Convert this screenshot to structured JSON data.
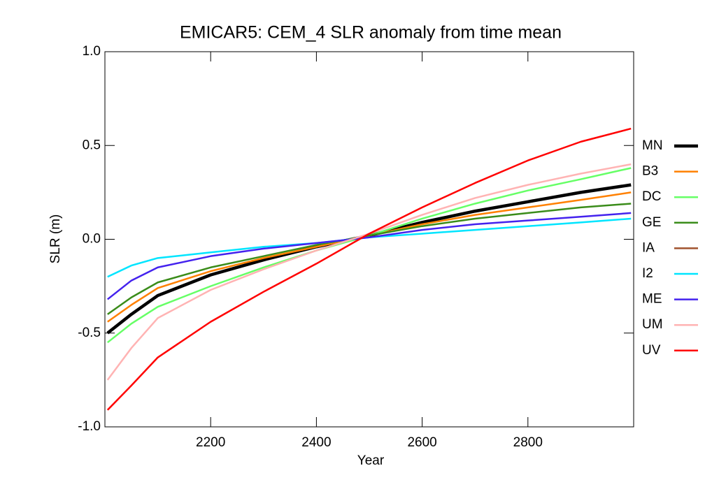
{
  "chart_data": {
    "type": "line",
    "title": "EMICAR5: CEM_4 SLR anomaly from time mean",
    "x_label": "Year",
    "y_label": "SLR (m)",
    "xlim": [
      2000,
      3000
    ],
    "ylim": [
      -1.0,
      1.0
    ],
    "xticks": [
      2200,
      2400,
      2600,
      2800
    ],
    "yticks": [
      {
        "value": -1.0,
        "label": "-1.0"
      },
      {
        "value": -0.5,
        "label": "-0.5"
      },
      {
        "value": 0,
        "label": "0.0"
      },
      {
        "value": 0.5,
        "label": "0.5"
      },
      {
        "value": 1.0,
        "label": "1.0"
      }
    ],
    "x": [
      2005,
      2050,
      2100,
      2200,
      2300,
      2400,
      2500,
      2600,
      2700,
      2800,
      2900,
      2995
    ],
    "series": [
      {
        "name": "MN",
        "color": "#000000",
        "line_width": 4.5,
        "values": [
          -0.5,
          -0.4,
          -0.3,
          -0.19,
          -0.11,
          -0.04,
          0.02,
          0.09,
          0.15,
          0.2,
          0.25,
          0.29
        ]
      },
      {
        "name": "B3",
        "color": "#ff8000",
        "line_width": 2.5,
        "values": [
          -0.44,
          -0.35,
          -0.26,
          -0.17,
          -0.1,
          -0.04,
          0.02,
          0.08,
          0.13,
          0.17,
          0.21,
          0.25
        ]
      },
      {
        "name": "DC",
        "color": "#66ff66",
        "line_width": 2.5,
        "values": [
          -0.55,
          -0.45,
          -0.36,
          -0.25,
          -0.15,
          -0.06,
          0.02,
          0.11,
          0.19,
          0.26,
          0.32,
          0.38
        ]
      },
      {
        "name": "GE",
        "color": "#3a8c1a",
        "line_width": 2.5,
        "values": [
          -0.4,
          -0.31,
          -0.23,
          -0.15,
          -0.09,
          -0.03,
          0.02,
          0.07,
          0.11,
          0.14,
          0.17,
          0.19
        ]
      },
      {
        "name": "IA",
        "color": "#a0522d",
        "line_width": 2.5,
        "values": [
          null,
          null,
          null,
          null,
          null,
          null,
          null,
          null,
          null,
          null,
          null,
          null
        ]
      },
      {
        "name": "I2",
        "color": "#00e5ff",
        "line_width": 2.5,
        "values": [
          -0.2,
          -0.14,
          -0.1,
          -0.07,
          -0.04,
          -0.02,
          0.01,
          0.03,
          0.05,
          0.07,
          0.09,
          0.11
        ]
      },
      {
        "name": "ME",
        "color": "#4422ee",
        "line_width": 2.5,
        "values": [
          -0.32,
          -0.22,
          -0.15,
          -0.09,
          -0.05,
          -0.02,
          0.01,
          0.05,
          0.08,
          0.1,
          0.12,
          0.14
        ]
      },
      {
        "name": "UM",
        "color": "#ffb3b3",
        "line_width": 2.5,
        "values": [
          -0.75,
          -0.58,
          -0.42,
          -0.27,
          -0.16,
          -0.06,
          0.03,
          0.13,
          0.22,
          0.29,
          0.35,
          0.4
        ]
      },
      {
        "name": "UV",
        "color": "#ff0000",
        "line_width": 2.5,
        "values": [
          -0.91,
          -0.78,
          -0.63,
          -0.44,
          -0.28,
          -0.13,
          0.03,
          0.17,
          0.3,
          0.42,
          0.52,
          0.59
        ]
      }
    ]
  }
}
